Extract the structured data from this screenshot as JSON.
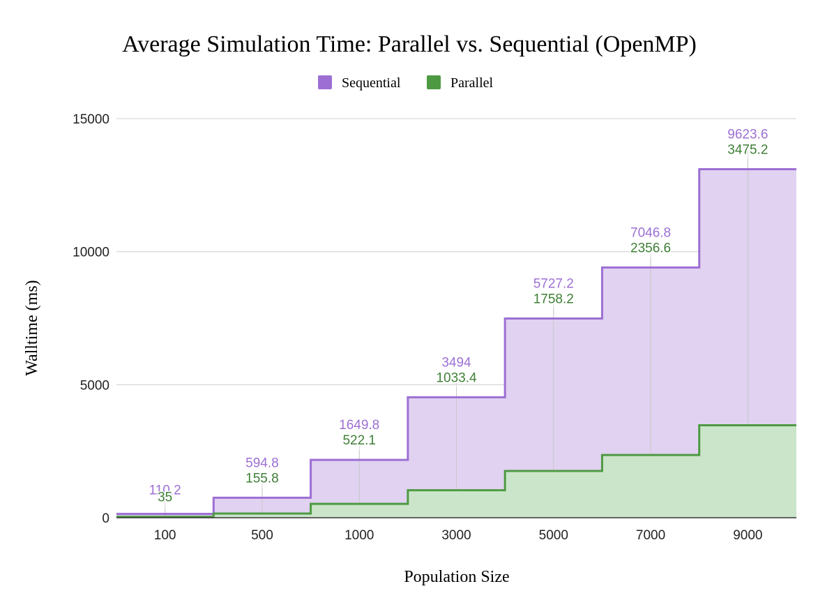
{
  "chart_data": {
    "type": "area",
    "title": "Average Simulation Time: Parallel vs. Sequential (OpenMP)",
    "xlabel": "Population Size",
    "ylabel": "Walltime (ms)",
    "categories": [
      "100",
      "500",
      "1000",
      "3000",
      "5000",
      "7000",
      "9000"
    ],
    "stacked": true,
    "stepped": true,
    "ylim": [
      0,
      15000
    ],
    "yticks": [
      0,
      5000,
      10000,
      15000
    ],
    "grid": true,
    "legend": "top-center",
    "series": [
      {
        "name": "Sequential",
        "values": [
          110.2,
          594.8,
          1649.8,
          3494,
          5727.2,
          7046.8,
          9623.6
        ],
        "color": "#9d6fd4",
        "fill": "#e0d2f0"
      },
      {
        "name": "Parallel",
        "values": [
          35,
          155.8,
          522.1,
          1033.4,
          1758.2,
          2356.6,
          3475.2
        ],
        "color": "#4e9a43",
        "fill": "#cbe5ca"
      }
    ]
  }
}
